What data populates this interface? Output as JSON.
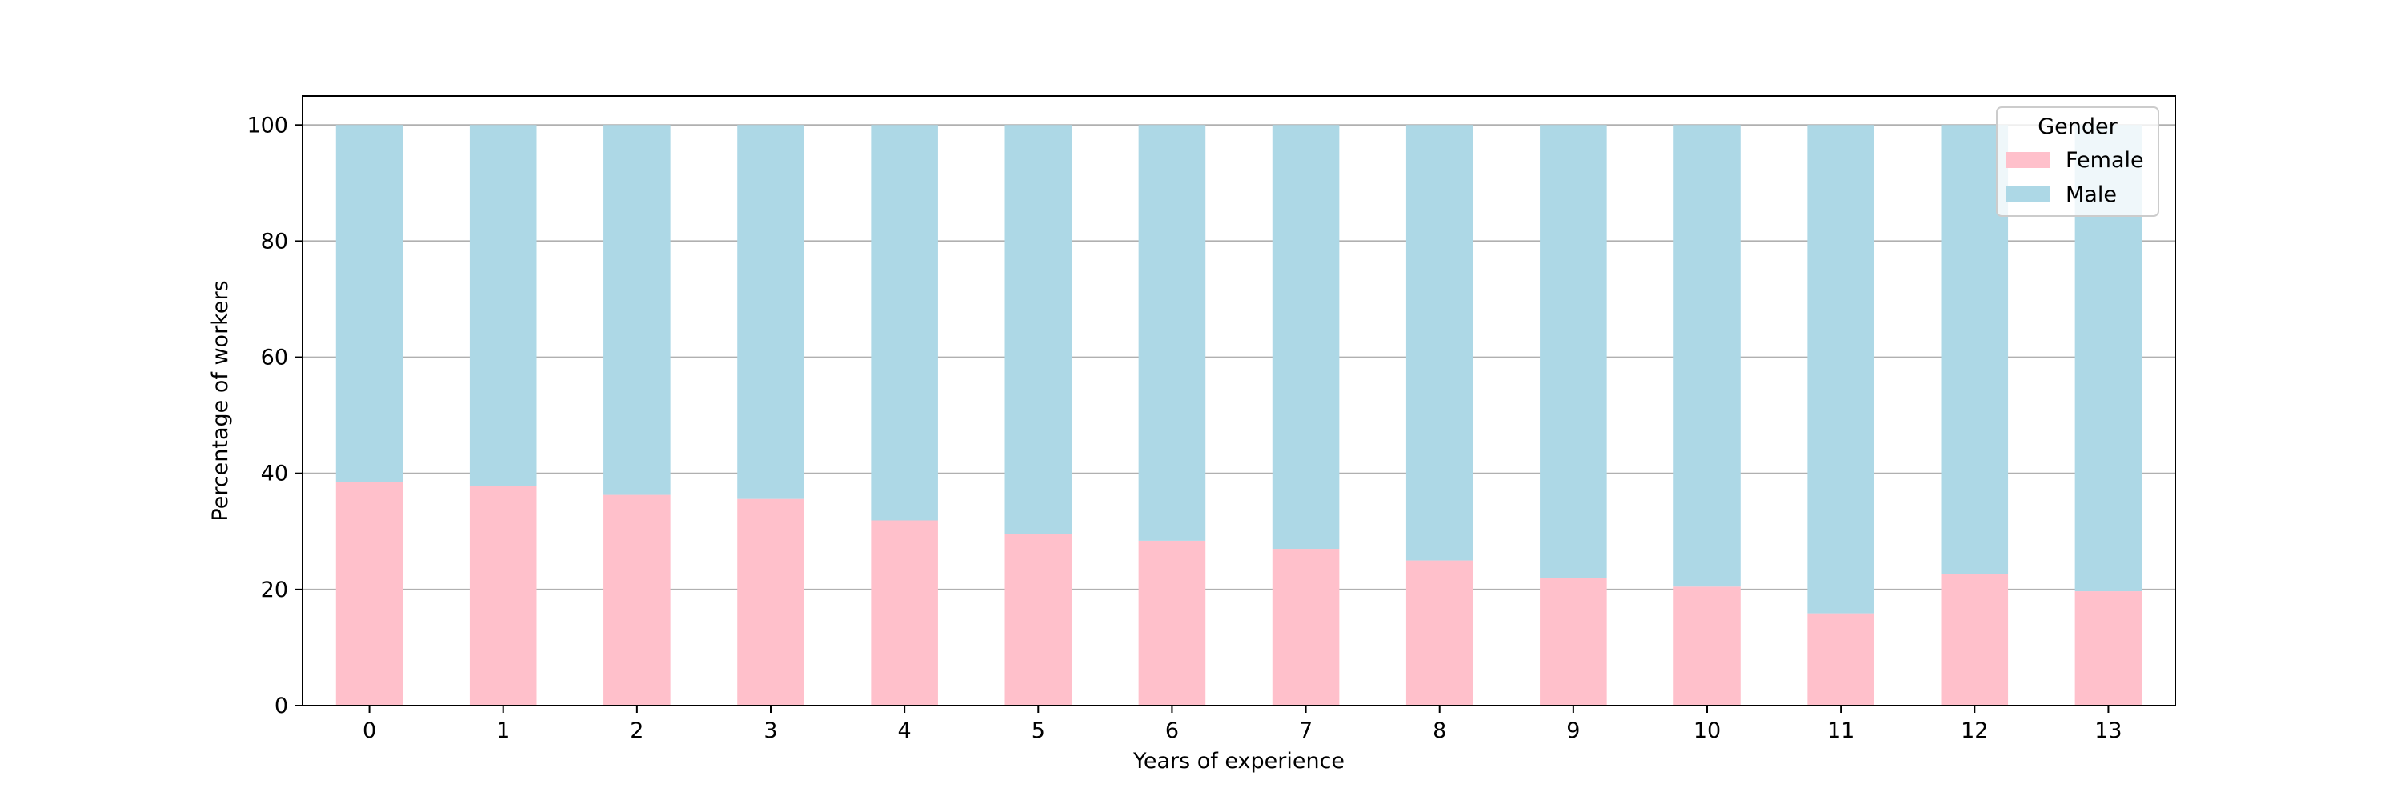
{
  "chart_data": {
    "type": "bar",
    "stacked": true,
    "title": "",
    "xlabel": "Years of experience",
    "ylabel": "Percentage of workers",
    "categories": [
      "0",
      "1",
      "2",
      "3",
      "4",
      "5",
      "6",
      "7",
      "8",
      "9",
      "10",
      "11",
      "12",
      "13"
    ],
    "ylim": [
      0,
      105
    ],
    "yticks": [
      0,
      20,
      40,
      60,
      80,
      100
    ],
    "grid": "horizontal",
    "legend": {
      "title": "Gender",
      "placement": "top-right"
    },
    "series": [
      {
        "name": "Female",
        "color": "#ffc0cb",
        "values": [
          38.5,
          37.8,
          36.3,
          35.6,
          31.9,
          29.5,
          28.4,
          27.0,
          25.0,
          22.0,
          20.5,
          15.9,
          22.6,
          19.7
        ]
      },
      {
        "name": "Male",
        "color": "#add8e6",
        "values": [
          61.5,
          62.2,
          63.7,
          64.4,
          68.1,
          70.5,
          71.6,
          73.0,
          75.0,
          78.0,
          79.5,
          84.1,
          77.4,
          80.3
        ]
      }
    ]
  }
}
